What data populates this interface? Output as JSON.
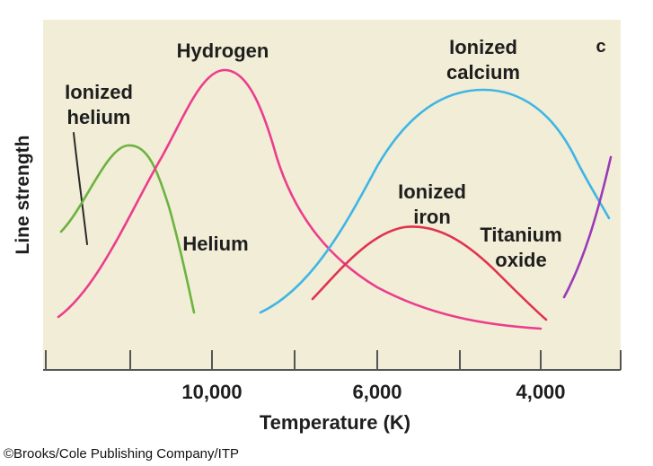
{
  "chart_data": {
    "type": "line",
    "panel_label": "c",
    "xlabel": "Temperature (K)",
    "ylabel": "Line strength",
    "x_ticks": [
      {
        "label": "10,000"
      },
      {
        "label": "6,000"
      },
      {
        "label": "4,000"
      }
    ],
    "series": [
      {
        "name": "Ionized helium",
        "label_lines": [
          "Ionized",
          "helium"
        ],
        "color": "#2a2a2a"
      },
      {
        "name": "Helium",
        "label_lines": [
          "Helium"
        ],
        "color": "#6db33f"
      },
      {
        "name": "Hydrogen",
        "label_lines": [
          "Hydrogen"
        ],
        "color": "#ec3d8d"
      },
      {
        "name": "Ionized calcium",
        "label_lines": [
          "Ionized",
          "calcium"
        ],
        "color": "#3fb5e6"
      },
      {
        "name": "Ionized iron",
        "label_lines": [
          "Ionized",
          "iron"
        ],
        "color": "#e0334f"
      },
      {
        "name": "Titanium oxide",
        "label_lines": [
          "Titanium",
          "oxide"
        ],
        "color": "#9b3ab8"
      }
    ],
    "plot_background": "#f1edd6"
  },
  "credit": "©Brooks/Cole Publishing Company/ITP"
}
